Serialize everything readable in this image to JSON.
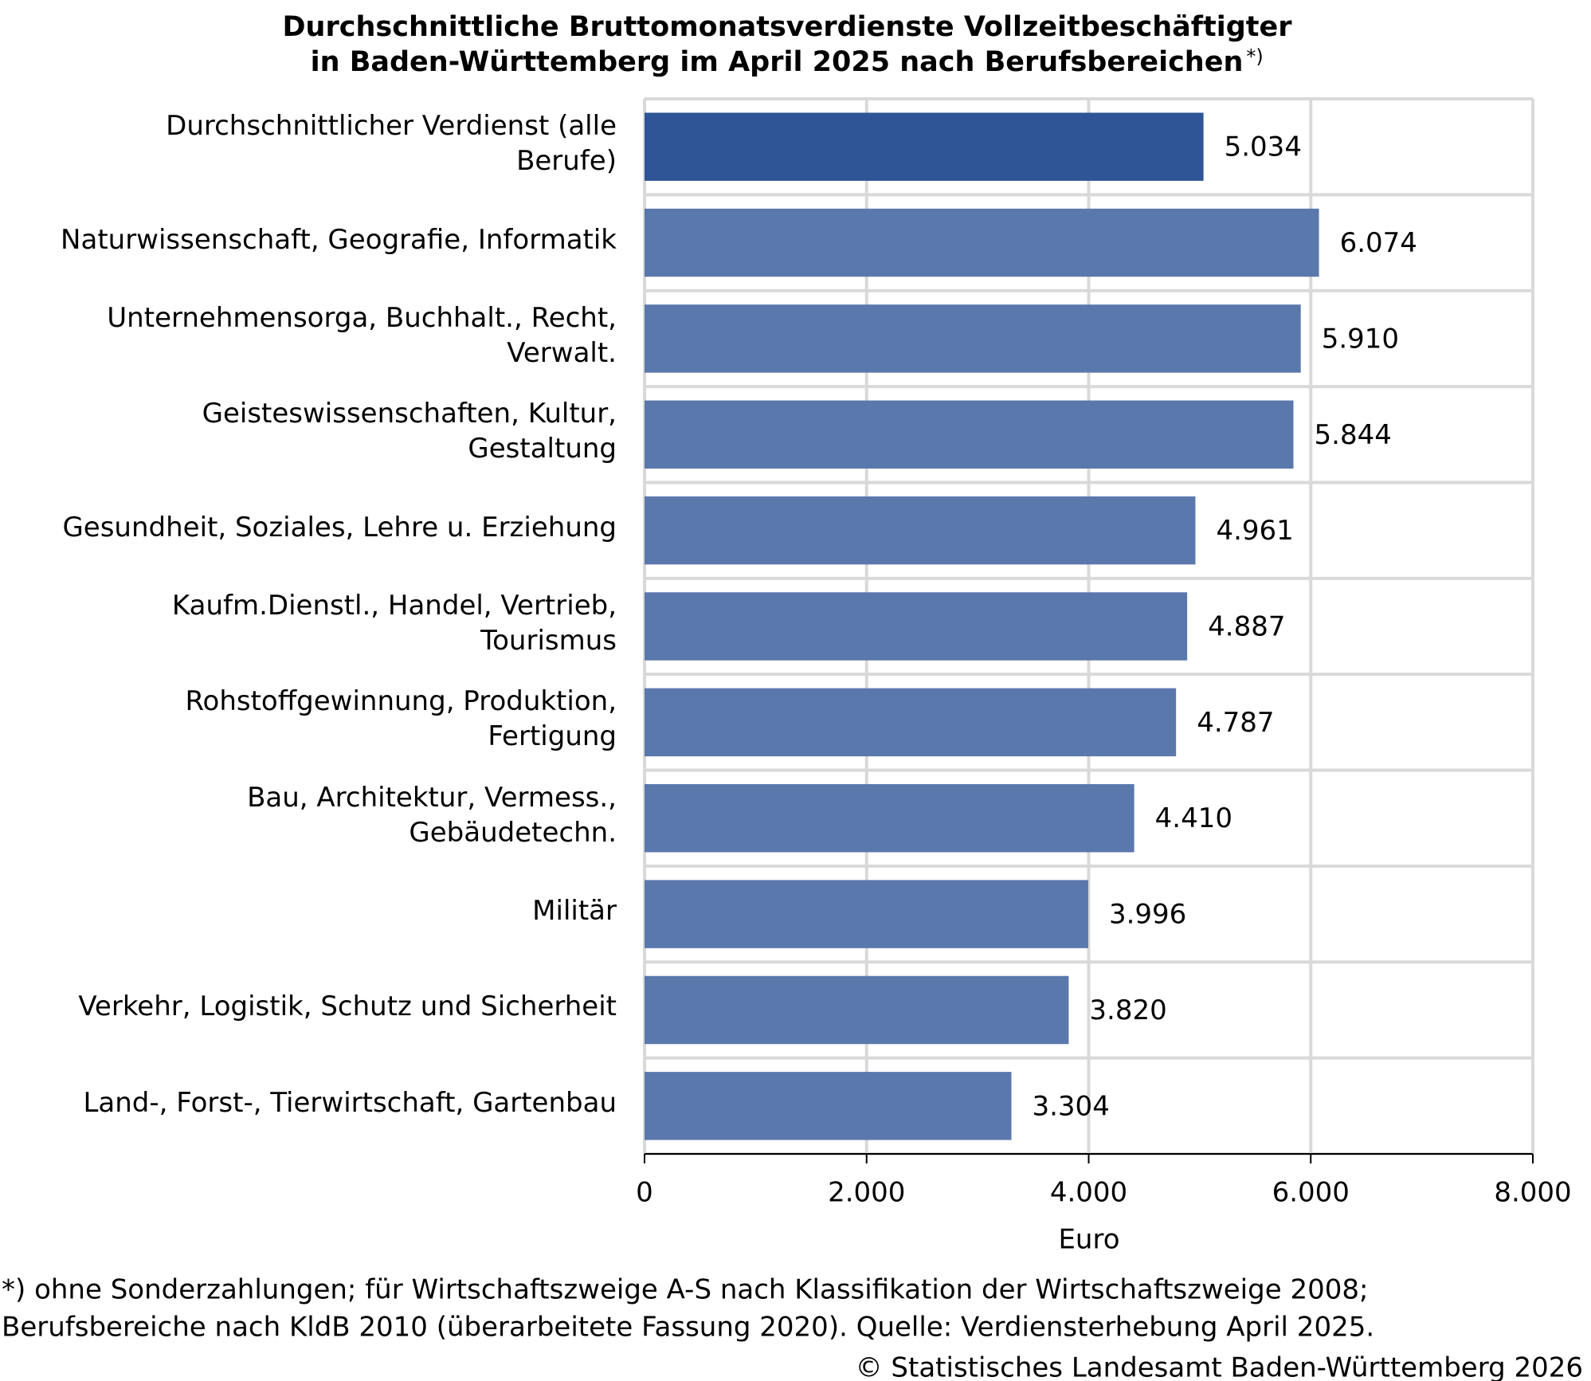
{
  "chart_data": {
    "type": "hbar",
    "title": [
      "Durchschnittliche Bruttomonatsverdienste Vollzeitbeschäftigter",
      "in Baden-Württemberg im April 2025 nach Berufsbereichen"
    ],
    "title_note": "*)",
    "categories": [
      "Durchschnittlicher Verdienst (alle\nBerufe)",
      "Naturwissenschaft, Geografie, Informatik",
      "Unternehmensorga, Buchhalt., Recht,\nVerwalt.",
      "Geisteswissenschaften, Kultur,\nGestaltung",
      "Gesundheit, Soziales, Lehre u. Erziehung",
      "Kaufm.Dienstl., Handel, Vertrieb,\nTourismus",
      "Rohstoffgewinnung, Produktion,\nFertigung",
      "Bau, Architektur, Vermess.,\nGebäudetechn.",
      "Militär",
      "Verkehr, Logistik, Schutz und Sicherheit",
      "Land-, Forst-, Tierwirtschaft, Gartenbau"
    ],
    "values": [
      5034,
      6074,
      5910,
      5844,
      4961,
      4887,
      4787,
      4410,
      3996,
      3820,
      3304
    ],
    "value_labels": [
      "5.034",
      "6.074",
      "5.910",
      "5.844",
      "4.961",
      "4.887",
      "4.787",
      "4.410",
      "3.996",
      "3.820",
      "3.304"
    ],
    "colors": [
      "#2f5597",
      "#5b78ad",
      "#5b78ad",
      "#5b78ad",
      "#5b78ad",
      "#5b78ad",
      "#5b78ad",
      "#5b78ad",
      "#5b78ad",
      "#5b78ad",
      "#5b78ad"
    ],
    "xlim": [
      0,
      8000
    ],
    "xticks": [
      0,
      {
        "value": 2000,
        "label": "2.000"
      },
      {
        "value": 4000,
        "label": "4.000"
      },
      {
        "value": 6000,
        "label": "6.000"
      },
      {
        "value": 8000,
        "label": "8.000"
      }
    ],
    "xlabel": "Euro",
    "grid": true,
    "footnote": [
      "*) ohne Sonderzahlungen; für Wirtschaftszweige A-S nach Klassifikation der Wirtschaftszweige 2008;",
      "Berufsbereiche nach KldB 2010 (überarbeitete Fassung 2020). Quelle: Verdiensterhebung April 2025."
    ],
    "source": "© Statistisches Landesamt Baden-Württemberg 2026"
  }
}
